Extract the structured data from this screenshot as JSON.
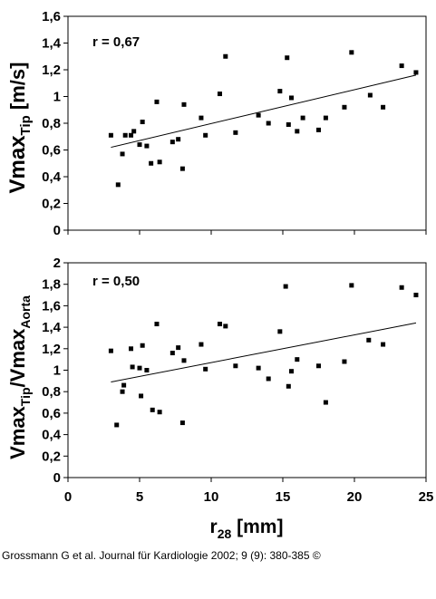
{
  "caption": "Grossmann G et al. Journal für Kardiologie 2002; 9 (9): 380-385 ©",
  "chart_data": [
    {
      "type": "scatter",
      "ylabel_main": "Vmax",
      "ylabel_sub": "Tip",
      "ylabel_unit": " [m/s]",
      "annotation": "r = 0,67",
      "xlim": [
        0,
        25
      ],
      "ylim": [
        0,
        1.6
      ],
      "yticks": [
        0,
        0.2,
        0.4,
        0.6,
        0.8,
        1,
        1.2,
        1.4,
        1.6
      ],
      "ytick_labels": [
        "0",
        "0,2",
        "0,4",
        "0,6",
        "0,8",
        "1",
        "1,2",
        "1,4",
        "1,6"
      ],
      "trendline": [
        [
          3.0,
          0.62
        ],
        [
          24.3,
          1.16
        ]
      ],
      "x": [
        3.0,
        3.5,
        3.8,
        4.0,
        4.4,
        4.6,
        5.0,
        5.2,
        5.5,
        5.8,
        6.2,
        6.4,
        7.3,
        7.7,
        8.0,
        8.1,
        9.3,
        9.6,
        10.6,
        11.0,
        11.7,
        13.3,
        14.0,
        14.8,
        15.3,
        15.4,
        15.6,
        16.0,
        16.4,
        17.5,
        18.0,
        19.3,
        19.8,
        21.1,
        22.0,
        23.3,
        24.3
      ],
      "y": [
        0.71,
        0.34,
        0.57,
        0.71,
        0.71,
        0.74,
        0.64,
        0.81,
        0.63,
        0.5,
        0.96,
        0.51,
        0.66,
        0.68,
        0.46,
        0.94,
        0.84,
        0.71,
        1.02,
        1.3,
        0.73,
        0.86,
        0.8,
        1.04,
        1.29,
        0.79,
        0.99,
        0.74,
        0.84,
        0.75,
        0.84,
        0.92,
        1.33,
        1.01,
        0.92,
        1.23,
        1.18
      ]
    },
    {
      "type": "scatter",
      "ylabel_main": "Vmax",
      "ylabel_sub": "Tip",
      "ylabel_main2": "/Vmax",
      "ylabel_sub2": "Aorta",
      "annotation": "r = 0,50",
      "xlim": [
        0,
        25
      ],
      "ylim": [
        0,
        2
      ],
      "yticks": [
        0,
        0.2,
        0.4,
        0.6,
        0.8,
        1,
        1.2,
        1.4,
        1.6,
        1.8,
        2
      ],
      "ytick_labels": [
        "0",
        "0,2",
        "0,4",
        "0,6",
        "0,8",
        "1",
        "1,2",
        "1,4",
        "1,6",
        "1,8",
        "2"
      ],
      "xticks": [
        0,
        5,
        10,
        15,
        20,
        25
      ],
      "xtick_labels": [
        "0",
        "5",
        "10",
        "15",
        "20",
        "25"
      ],
      "xlabel_main": "r",
      "xlabel_sub": "28",
      "xlabel_unit": "  [mm]",
      "trendline": [
        [
          3.0,
          0.89
        ],
        [
          24.3,
          1.44
        ]
      ],
      "x": [
        3.0,
        3.4,
        3.8,
        3.9,
        4.4,
        4.5,
        5.0,
        5.1,
        5.2,
        5.5,
        5.9,
        6.2,
        6.4,
        7.3,
        7.7,
        8.0,
        8.1,
        9.3,
        9.6,
        10.6,
        11.0,
        11.7,
        13.3,
        14.0,
        14.8,
        15.2,
        15.4,
        15.6,
        16.0,
        17.5,
        18.0,
        19.3,
        19.8,
        21.0,
        22.0,
        23.3,
        24.3
      ],
      "y": [
        1.18,
        0.49,
        0.8,
        0.86,
        1.2,
        1.03,
        1.02,
        0.76,
        1.23,
        1.0,
        0.63,
        1.43,
        0.61,
        1.16,
        1.21,
        0.51,
        1.09,
        1.24,
        1.01,
        1.43,
        1.41,
        1.04,
        1.02,
        0.92,
        1.36,
        1.78,
        0.85,
        0.99,
        1.1,
        1.04,
        0.7,
        1.08,
        1.79,
        1.28,
        1.24,
        1.77,
        1.7
      ]
    }
  ]
}
